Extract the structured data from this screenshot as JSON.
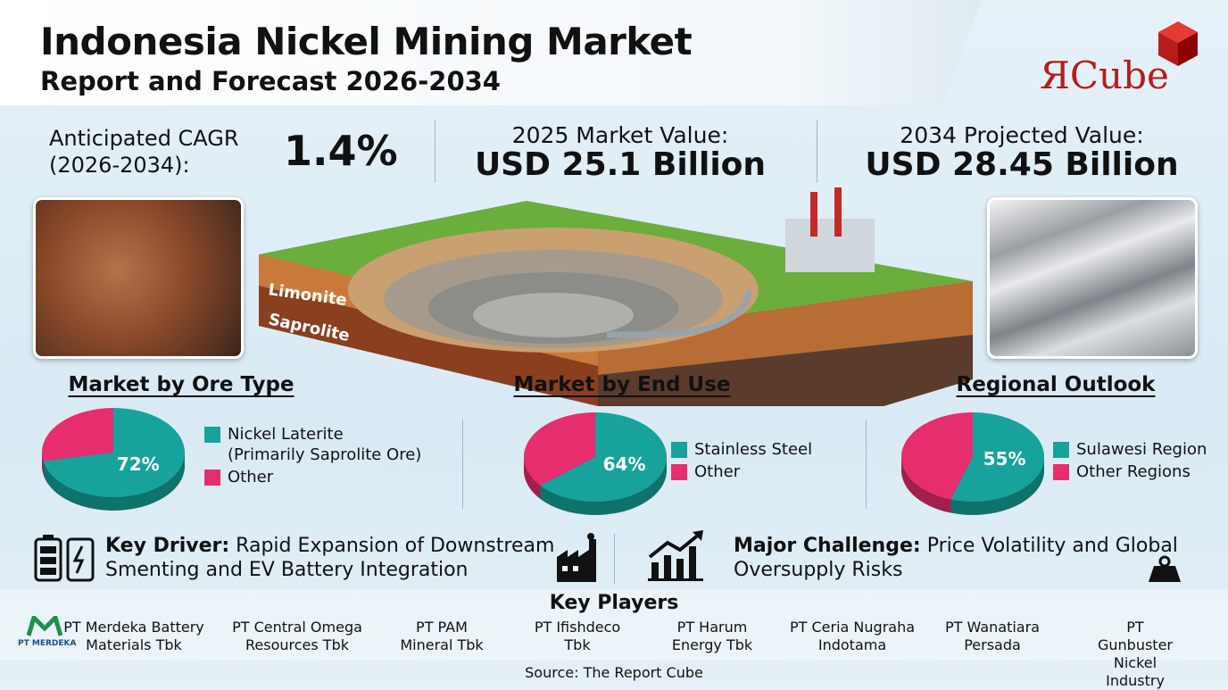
{
  "header": {
    "title": "Indonesia Nickel Mining Market",
    "subtitle": "Report and Forecast 2026-2034"
  },
  "logo": "ЯCube",
  "stats": [
    {
      "label": "Anticipated CAGR\n(2026-2034):",
      "value": "1.4%"
    },
    {
      "label": "2025 Market Value:",
      "value": "USD 25.1 Billion"
    },
    {
      "label": "2034 Projected Value:",
      "value": "USD 28.45 Billion"
    }
  ],
  "illustration": {
    "layers": [
      "Limonite",
      "Saprolite"
    ]
  },
  "chart_data": [
    {
      "type": "pie",
      "title": "Market by Ore Type",
      "categories": [
        "Nickel Laterite\n(Primarily Saprolite Ore)",
        "Other"
      ],
      "values": [
        72,
        28
      ],
      "value_labels": [
        "72%",
        null
      ],
      "colors": [
        "#17a39c",
        "#e62e6e"
      ]
    },
    {
      "type": "pie",
      "title": "Market by End Use",
      "categories": [
        "Stainless Steel",
        "Other"
      ],
      "values": [
        64,
        36
      ],
      "value_labels": [
        "64%",
        null
      ],
      "colors": [
        "#17a39c",
        "#e62e6e"
      ]
    },
    {
      "type": "pie",
      "title": "Regional Outlook",
      "categories": [
        "Sulawesi Region",
        "Other Regions"
      ],
      "values": [
        55,
        45
      ],
      "value_labels": [
        "55%",
        null
      ],
      "colors": [
        "#17a39c",
        "#e62e6e"
      ]
    }
  ],
  "driver": {
    "label": "Key Driver:",
    "text": "Rapid Expansion of Downstream Smenting and EV Battery Integration"
  },
  "challenge": {
    "label": "Major Challenge:",
    "text": "Price Volatility and Global Oversupply Risks"
  },
  "key_players": {
    "title": "Key Players",
    "logo_text": "PT MERDEKA",
    "players": [
      "PT Merdeka Battery\nMaterials Tbk",
      "PT Central Omega\nResources Tbk",
      "PT PAM\nMineral Tbk",
      "PT Ifishdeco\nTbk",
      "PT Harum\nEnergy Tbk",
      "PT Ceria Nugraha\nIndotama",
      "PT Wanatiara\nPersada",
      "PT Gunbuster Nickel\nIndustry"
    ]
  },
  "source": "Source: The Report Cube"
}
